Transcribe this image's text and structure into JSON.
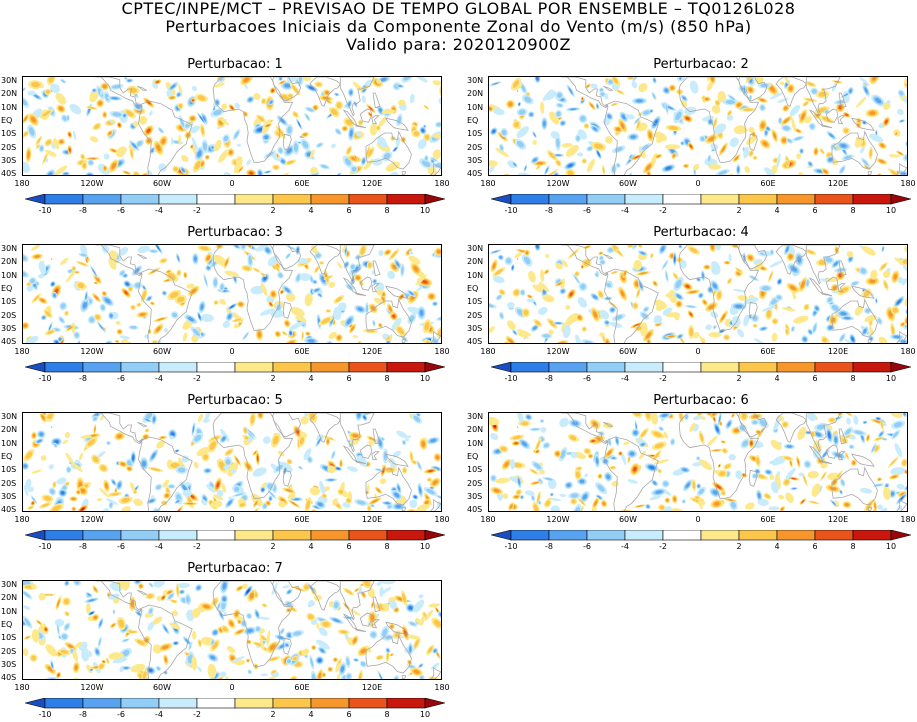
{
  "title": {
    "line1": "CPTEC/INPE/MCT – PREVISAO DE TEMPO GLOBAL POR ENSEMBLE – TQ0126L028",
    "line2": "Perturbacoes Iniciais da Componente Zonal do Vento (m/s) (850 hPa)",
    "line3": "Valido para: 2020120900Z"
  },
  "panels": [
    {
      "title": "Perturbacao: 1",
      "seed": 11
    },
    {
      "title": "Perturbacao: 2",
      "seed": 23
    },
    {
      "title": "Perturbacao: 3",
      "seed": 37
    },
    {
      "title": "Perturbacao: 4",
      "seed": 41
    },
    {
      "title": "Perturbacao: 5",
      "seed": 53
    },
    {
      "title": "Perturbacao: 6",
      "seed": 67
    },
    {
      "title": "Perturbacao: 7",
      "seed": 79
    }
  ],
  "lat_labels": [
    "30N",
    "20N",
    "10N",
    "EQ",
    "10S",
    "20S",
    "30S",
    "40S"
  ],
  "lon_labels": [
    "180",
    "120W",
    "60W",
    "0",
    "60E",
    "120E",
    "180"
  ],
  "colorbar": {
    "labels": [
      "-10",
      "-8",
      "-6",
      "-4",
      "-2",
      "2",
      "4",
      "6",
      "8",
      "10"
    ],
    "colors": [
      "#1a4ec0",
      "#2f7ee8",
      "#58a2f0",
      "#92cdf6",
      "#c8ecfb",
      "#ffffff",
      "#fde98c",
      "#fcc54b",
      "#f7962c",
      "#e8541c",
      "#c8180e",
      "#96060a"
    ]
  }
}
